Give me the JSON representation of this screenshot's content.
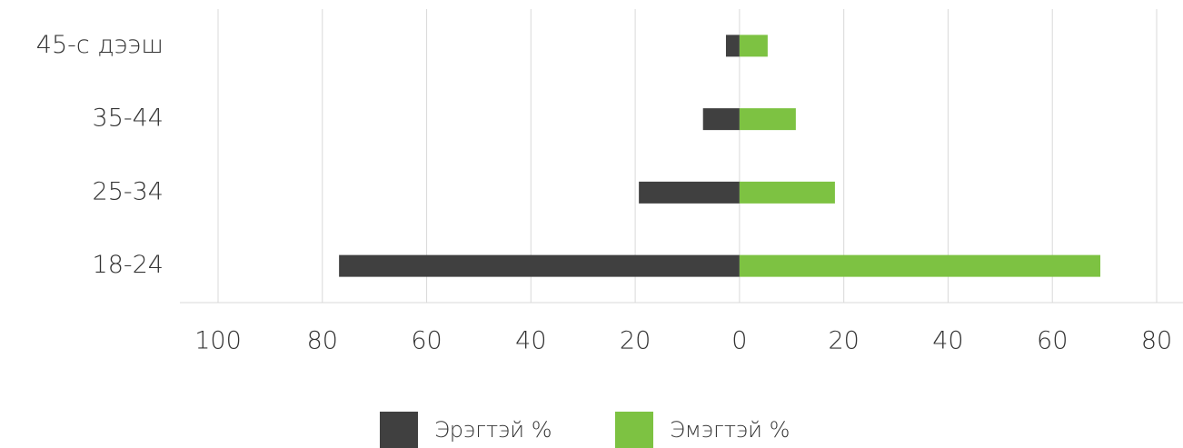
{
  "chart_data": {
    "type": "bar",
    "orientation": "horizontal",
    "categories": [
      "45-с дээш",
      "35-44",
      "25-34",
      "18-24"
    ],
    "series": [
      {
        "name": "Эрэгтэй %",
        "color": "#404040",
        "values": [
          -2.6,
          -7.0,
          -19.3,
          -76.8
        ]
      },
      {
        "name": "Эмэгтэй %",
        "color": "#7dc242",
        "values": [
          5.4,
          10.8,
          18.3,
          69.2
        ]
      }
    ],
    "xlim": [
      -100,
      80
    ],
    "xticks": [
      {
        "value": -100,
        "label": "100"
      },
      {
        "value": -80,
        "label": "80"
      },
      {
        "value": -60,
        "label": "60"
      },
      {
        "value": -40,
        "label": "40"
      },
      {
        "value": -20,
        "label": "20"
      },
      0,
      20,
      40,
      60,
      80
    ],
    "grid": true,
    "legend": "bottom"
  }
}
